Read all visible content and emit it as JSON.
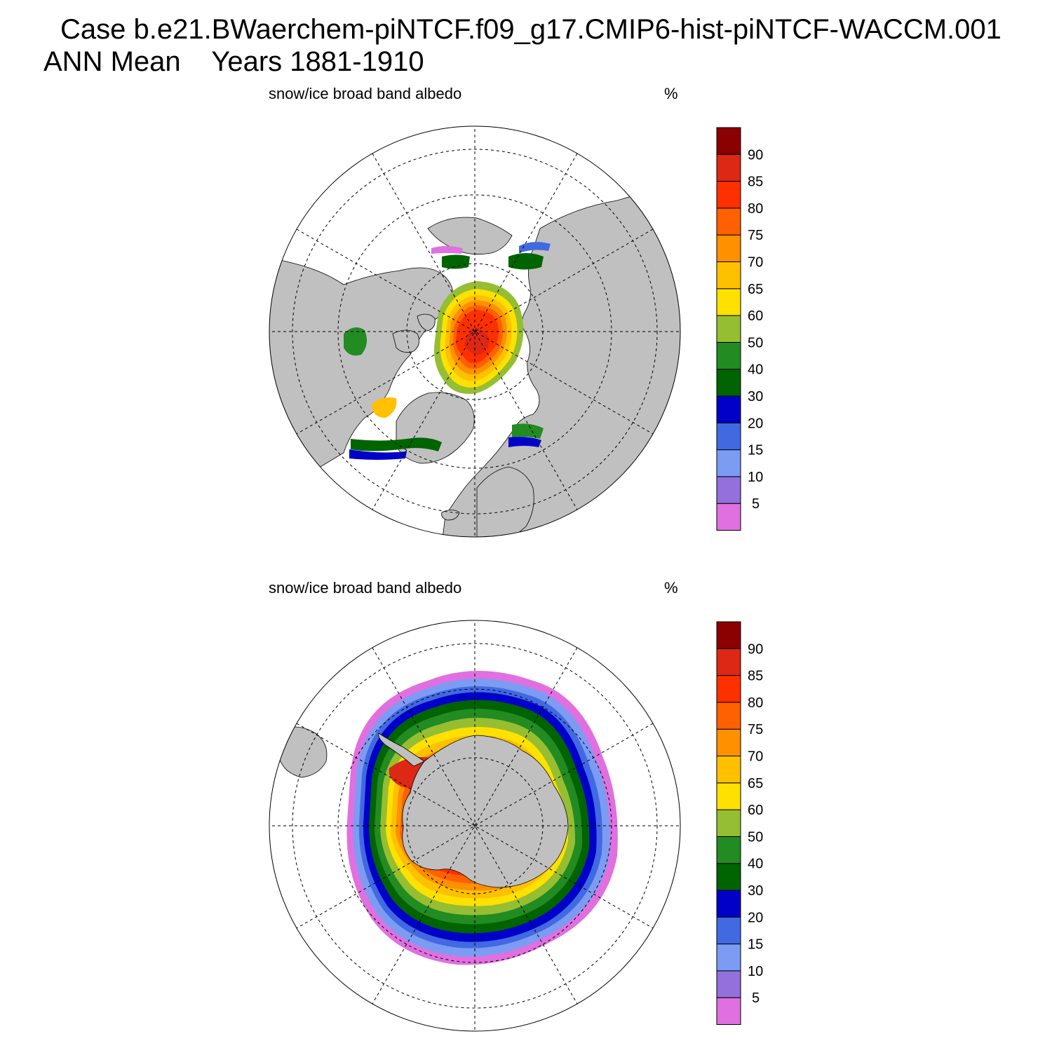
{
  "header": {
    "case_line": "Case b.e21.BWaerchem-piNTCF.f09_g17.CMIP6-hist-piNTCF-WACCM.001",
    "period_line": "ANN Mean    Years 1881-1910"
  },
  "panels": [
    {
      "hemisphere": "north",
      "variable_label": "snow/ice broad band albedo",
      "units": "%"
    },
    {
      "hemisphere": "south",
      "variable_label": "snow/ice broad band albedo",
      "units": "%"
    }
  ],
  "colorbar": {
    "levels": [
      "5",
      "10",
      "15",
      "20",
      "30",
      "40",
      "50",
      "60",
      "65",
      "70",
      "75",
      "80",
      "85",
      "90"
    ],
    "colors": [
      "#e070e0",
      "#9370db",
      "#7b9cf2",
      "#4169e1",
      "#0000c8",
      "#006400",
      "#228b22",
      "#96be32",
      "#ffe100",
      "#ffc000",
      "#ff9000",
      "#ff6000",
      "#ff3000",
      "#dc2814",
      "#8b0000"
    ]
  },
  "map_colors": {
    "land": "#c0c0c0",
    "ocean": "#ffffff",
    "coast": "#000000"
  }
}
